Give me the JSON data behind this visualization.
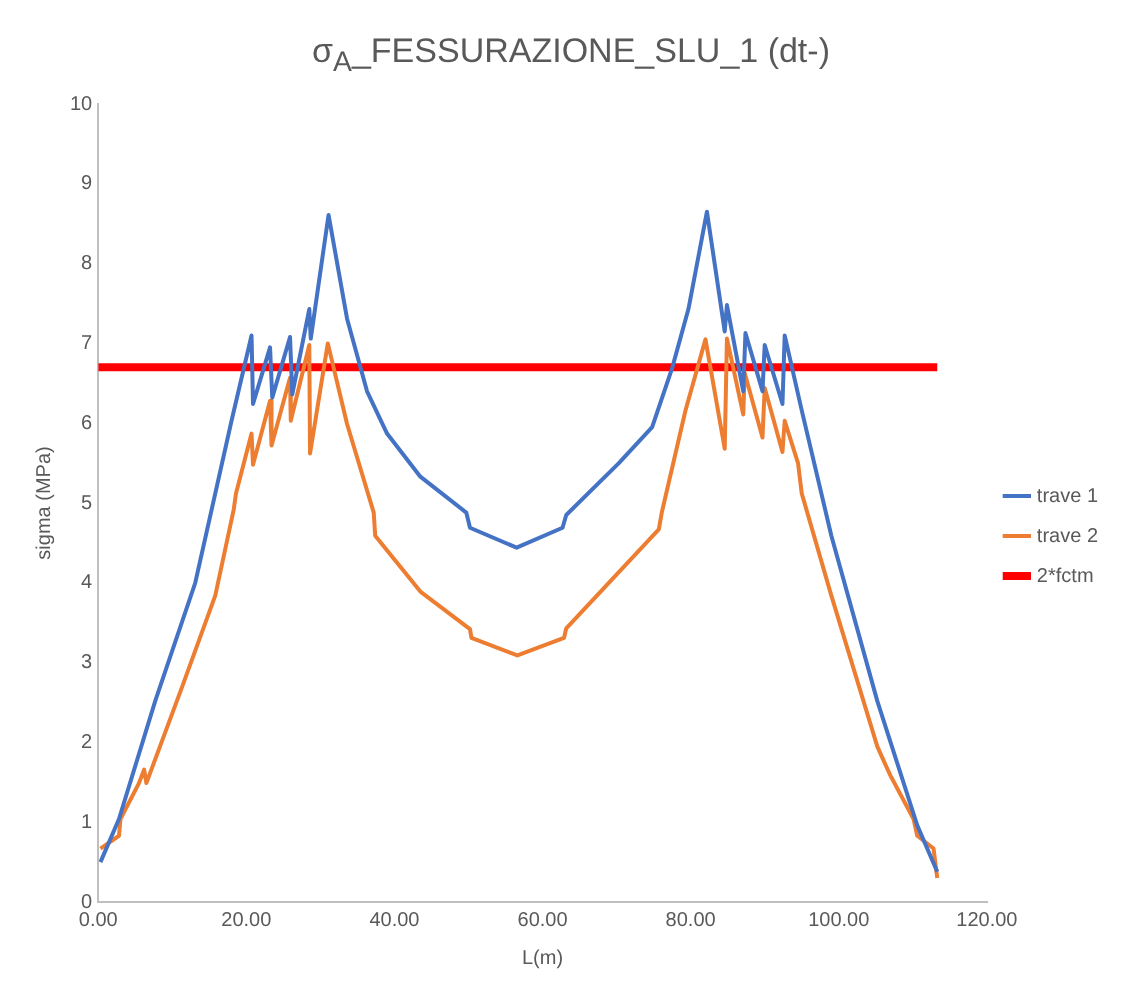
{
  "chart_data": {
    "type": "line",
    "title": "σ$_{A}$_FESSURAZIONE_SLU_1 (dt-)",
    "xlabel": "L(m)",
    "ylabel": "sigma (MPa)",
    "xlim": [
      0,
      120
    ],
    "xticks": [
      {
        "value": 0,
        "label": "0.00"
      },
      {
        "value": 20,
        "label": "20.00"
      },
      {
        "value": 40,
        "label": "40.00"
      },
      {
        "value": 60,
        "label": "60.00"
      },
      {
        "value": 80,
        "label": "80.00"
      },
      {
        "value": 100,
        "label": "100.00"
      },
      {
        "value": 120,
        "label": "120.00"
      }
    ],
    "ylim": [
      0,
      10
    ],
    "yticks": [
      0,
      1,
      2,
      3,
      4,
      5,
      6,
      7,
      8,
      9,
      10
    ],
    "grid": false,
    "legend": "right",
    "marker": "none",
    "line_style": "solid",
    "series": [
      {
        "name": "trave 1",
        "color": "#4472c4",
        "x": [
          0.3,
          2.8,
          7.7,
          13.1,
          18.0,
          20.7,
          20.9,
          23.2,
          23.5,
          25.9,
          26.2,
          28.5,
          28.7,
          31.1,
          33.6,
          36.3,
          39.0,
          43.5,
          49.7,
          50.2,
          56.5,
          62.7,
          63.2,
          70.3,
          74.8,
          77.5,
          79.7,
          82.2,
          84.6,
          84.9,
          87.1,
          87.4,
          89.7,
          90.0,
          92.4,
          92.7,
          95.0,
          99.0,
          105.2,
          110.6,
          113.3
        ],
        "values": [
          0.5,
          1.04,
          2.52,
          4.0,
          6.03,
          7.1,
          6.24,
          6.95,
          6.32,
          7.08,
          6.36,
          7.43,
          7.06,
          8.61,
          7.31,
          6.4,
          5.87,
          5.33,
          4.88,
          4.69,
          4.44,
          4.69,
          4.85,
          5.5,
          5.95,
          6.69,
          7.43,
          8.65,
          7.15,
          7.48,
          6.4,
          7.13,
          6.4,
          6.98,
          6.24,
          7.1,
          6.16,
          4.59,
          2.52,
          0.96,
          0.38
        ]
      },
      {
        "name": "trave 2",
        "color": "#ed7d31",
        "x": [
          0.3,
          2.8,
          3.0,
          5.5,
          6.2,
          6.5,
          11.3,
          15.8,
          18.3,
          18.6,
          20.7,
          20.9,
          23.2,
          23.4,
          25.9,
          26.0,
          28.5,
          28.6,
          31.0,
          33.6,
          37.2,
          37.4,
          43.5,
          50.2,
          50.4,
          56.6,
          62.9,
          63.2,
          75.7,
          76.1,
          79.3,
          82.0,
          84.6,
          84.9,
          87.1,
          87.3,
          89.7,
          90.0,
          92.4,
          92.7,
          94.5,
          95.0,
          99.0,
          105.2,
          106.6,
          107.0,
          110.1,
          110.6,
          112.8,
          113.3
        ],
        "values": [
          0.67,
          0.83,
          1.04,
          1.49,
          1.66,
          1.49,
          2.69,
          3.84,
          4.92,
          5.12,
          5.87,
          5.48,
          6.28,
          5.72,
          6.57,
          6.03,
          6.98,
          5.62,
          7.0,
          5.99,
          4.88,
          4.59,
          3.89,
          3.42,
          3.31,
          3.09,
          3.31,
          3.43,
          4.67,
          4.88,
          6.16,
          7.05,
          5.68,
          7.06,
          6.11,
          6.63,
          5.82,
          6.44,
          5.64,
          6.03,
          5.5,
          5.12,
          3.84,
          1.95,
          1.66,
          1.58,
          1.04,
          0.83,
          0.67,
          0.3
        ]
      },
      {
        "name": "2*fctm",
        "color": "#ff0000",
        "x": [
          0,
          113.3
        ],
        "values": [
          6.7,
          6.7
        ]
      }
    ]
  }
}
